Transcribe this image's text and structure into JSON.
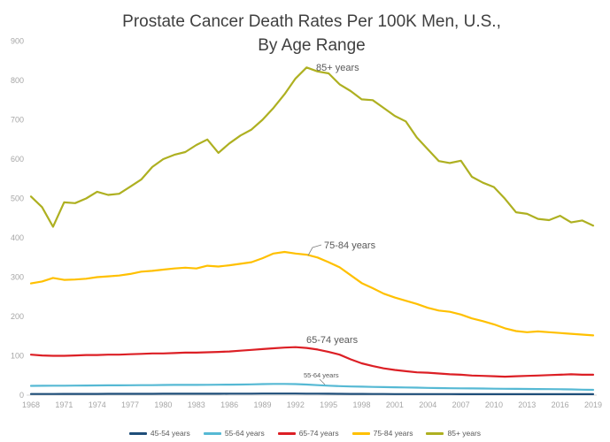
{
  "title": {
    "line1": "Prostate Cancer Death Rates Per 100K Men, U.S.,",
    "line2": "By Age Range"
  },
  "chart_data": {
    "type": "line",
    "title": "Prostate Cancer Death Rates Per 100K Men, U.S., By Age Range",
    "xlabel": "",
    "ylabel": "",
    "grid": false,
    "legend_position": "bottom",
    "xlim": [
      1968,
      2019
    ],
    "ylim": [
      0,
      900
    ],
    "y_ticks": [
      0,
      100,
      200,
      300,
      400,
      500,
      600,
      700,
      800,
      900
    ],
    "x_ticks": [
      1968,
      1971,
      1974,
      1977,
      1980,
      1983,
      1986,
      1989,
      1992,
      1995,
      1998,
      2001,
      2004,
      2007,
      2010,
      2013,
      2016,
      2019
    ],
    "x": [
      1968,
      1969,
      1970,
      1971,
      1972,
      1973,
      1974,
      1975,
      1976,
      1977,
      1978,
      1979,
      1980,
      1981,
      1982,
      1983,
      1984,
      1985,
      1986,
      1987,
      1988,
      1989,
      1990,
      1991,
      1992,
      1993,
      1994,
      1995,
      1996,
      1997,
      1998,
      1999,
      2000,
      2001,
      2002,
      2003,
      2004,
      2005,
      2006,
      2007,
      2008,
      2009,
      2010,
      2011,
      2012,
      2013,
      2014,
      2015,
      2016,
      2017,
      2018,
      2019
    ],
    "series": [
      {
        "name": "45-54 years",
        "color": "#1F4E79",
        "values": [
          3,
          3,
          3,
          3.1,
          3.1,
          3.2,
          3.2,
          3.3,
          3.3,
          3.3,
          3.4,
          3.4,
          3.5,
          3.5,
          3.6,
          3.6,
          3.7,
          3.7,
          3.8,
          3.8,
          3.9,
          4,
          4,
          4,
          4,
          3.9,
          3.8,
          3.6,
          3.4,
          3.2,
          3.1,
          3,
          2.9,
          2.8,
          2.8,
          2.7,
          2.7,
          2.6,
          2.6,
          2.5,
          2.5,
          2.5,
          2.4,
          2.4,
          2.4,
          2.4,
          2.4,
          2.4,
          2.4,
          2.4,
          2.4,
          2.4
        ]
      },
      {
        "name": "55-64 years",
        "color": "#56B9D4",
        "values": [
          23.5,
          23.8,
          24,
          24,
          24.2,
          24.5,
          24.8,
          25,
          25,
          25.2,
          25.5,
          25.5,
          25.8,
          26,
          26,
          26,
          26.2,
          26.5,
          26.8,
          27,
          27.5,
          28,
          28.5,
          28.5,
          28,
          27,
          25.5,
          24,
          23,
          22,
          21.5,
          21,
          20.5,
          20,
          19.5,
          19,
          18.5,
          18,
          17.5,
          17.2,
          17,
          16.8,
          16.5,
          16.2,
          16,
          15.8,
          15.5,
          15.2,
          15,
          14.5,
          14,
          13.5
        ]
      },
      {
        "name": "65-74 years",
        "color": "#DC1F25",
        "values": [
          103,
          101,
          100,
          100,
          101,
          102,
          102,
          103,
          103,
          104,
          105,
          106,
          106,
          107,
          108,
          108,
          109,
          110,
          111,
          113,
          115,
          117,
          119,
          121,
          122,
          120,
          116,
          110,
          103,
          91,
          81,
          74,
          68,
          64,
          61,
          58,
          57,
          55,
          53,
          52,
          50,
          49,
          48,
          47,
          48,
          49,
          50,
          51,
          52,
          53,
          52,
          52
        ]
      },
      {
        "name": "75-84 years",
        "color": "#FFC000",
        "values": [
          284,
          289,
          298,
          293,
          294,
          296,
          300,
          302,
          304,
          308,
          314,
          316,
          319,
          322,
          324,
          322,
          329,
          327,
          330,
          334,
          338,
          348,
          360,
          364,
          360,
          357,
          350,
          338,
          325,
          305,
          285,
          272,
          258,
          248,
          240,
          232,
          222,
          215,
          212,
          205,
          195,
          188,
          180,
          170,
          163,
          160,
          162,
          160,
          158,
          156,
          154,
          152
        ]
      },
      {
        "name": "85+ years",
        "color": "#AEB021",
        "values": [
          505,
          478,
          428,
          490,
          488,
          500,
          517,
          509,
          512,
          530,
          548,
          580,
          600,
          611,
          618,
          636,
          650,
          616,
          640,
          660,
          675,
          700,
          730,
          765,
          805,
          833,
          823,
          818,
          790,
          773,
          752,
          750,
          730,
          710,
          696,
          655,
          625,
          595,
          590,
          596,
          555,
          540,
          529,
          499,
          465,
          461,
          448,
          445,
          456,
          439,
          444,
          431
        ]
      }
    ],
    "annotations": [
      {
        "text": "85+ years",
        "x": 357,
        "y": 80,
        "font_size": 11
      },
      {
        "text": "75-84 years",
        "x": 366,
        "y": 281,
        "font_size": 11,
        "leader": [
          [
            363,
            277
          ],
          [
            353,
            280
          ],
          [
            348,
            289
          ]
        ]
      },
      {
        "text": "65-74 years",
        "x": 346,
        "y": 388,
        "font_size": 11
      },
      {
        "text": "55-64 years",
        "x": 343,
        "y": 427,
        "font_size": 7.5,
        "leader": [
          [
            361,
            429
          ],
          [
            367,
            435
          ]
        ]
      }
    ]
  },
  "legend": {
    "items": [
      {
        "label": "45-54 years",
        "color": "#1F4E79"
      },
      {
        "label": "55-64 years",
        "color": "#56B9D4"
      },
      {
        "label": "65-74 years",
        "color": "#DC1F25"
      },
      {
        "label": "75-84 years",
        "color": "#FFC000"
      },
      {
        "label": "85+ years",
        "color": "#AEB021"
      }
    ]
  },
  "colors": {
    "background": "#FFFFFF",
    "title_text": "#404040",
    "tick_text": "#A6A6A6",
    "annotation_text": "#595959",
    "axis_line": "#D9D9D9"
  }
}
